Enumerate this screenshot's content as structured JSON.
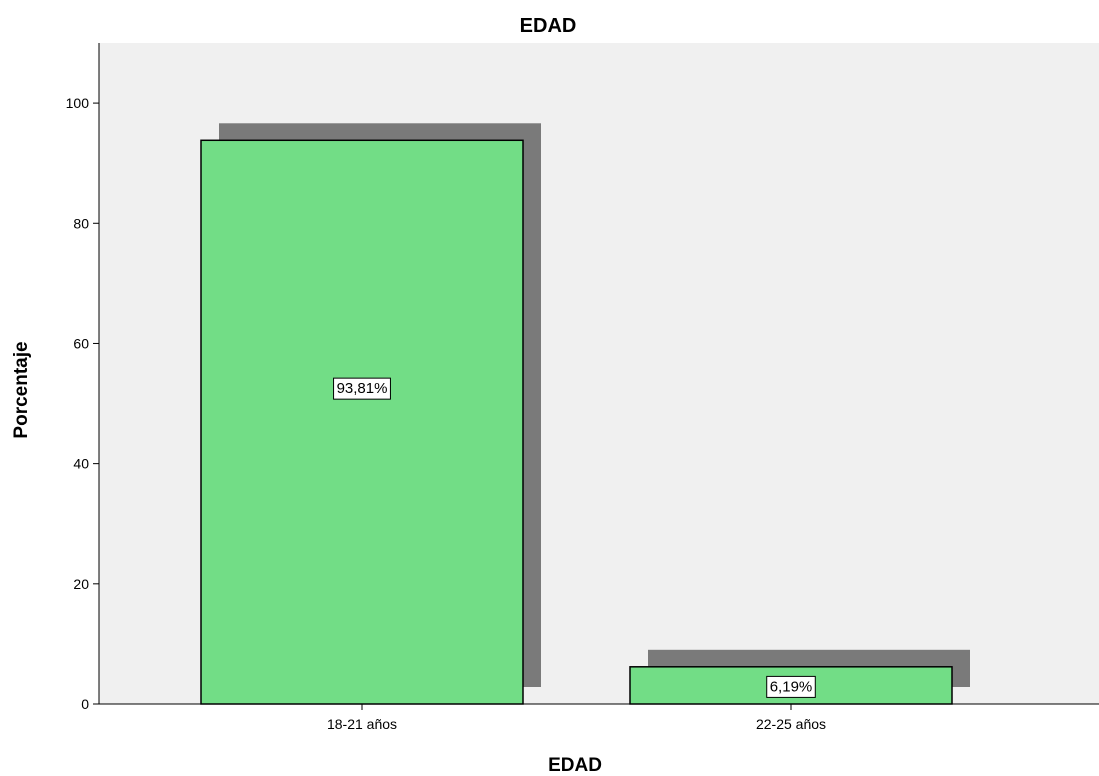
{
  "chart_data": {
    "type": "bar",
    "title": "EDAD",
    "xlabel": "EDAD",
    "ylabel": "Porcentaje",
    "categories": [
      "18-21 años",
      "22-25 años"
    ],
    "values": [
      93.81,
      6.19
    ],
    "data_labels": [
      "93,81%",
      "6,19%"
    ],
    "y_ticks": [
      "0",
      "20",
      "40",
      "60",
      "80",
      "100"
    ],
    "ylim": [
      0,
      110
    ],
    "grid": false,
    "bar_style": "3d-shadow",
    "colors": {
      "bar": "#72dd86",
      "bar_border": "#000000",
      "shadow": "#7a7a7a",
      "plot_background": "#f0f0f0"
    }
  }
}
